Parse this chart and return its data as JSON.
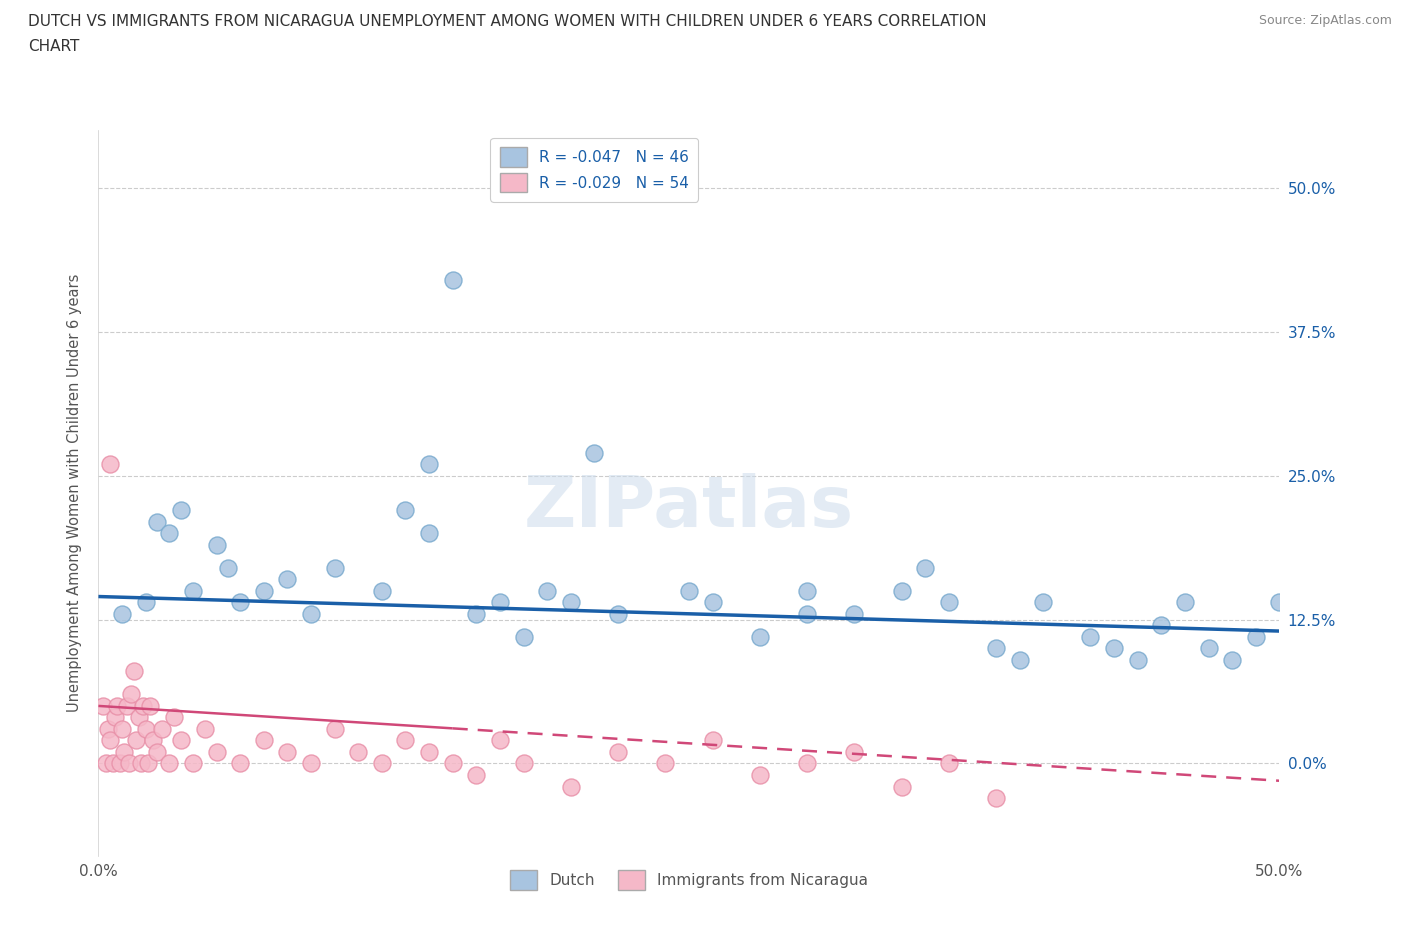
{
  "title_line1": "DUTCH VS IMMIGRANTS FROM NICARAGUA UNEMPLOYMENT AMONG WOMEN WITH CHILDREN UNDER 6 YEARS CORRELATION",
  "title_line2": "CHART",
  "source": "Source: ZipAtlas.com",
  "ylabel": "Unemployment Among Women with Children Under 6 years",
  "ytick_values": [
    0,
    12.5,
    25.0,
    37.5,
    50.0
  ],
  "ytick_labels": [
    "0.0%",
    "12.5%",
    "25.0%",
    "37.5%",
    "50.0%"
  ],
  "xtick_values": [
    0,
    50
  ],
  "xtick_labels": [
    "0.0%",
    "50.0%"
  ],
  "xlim": [
    0,
    50
  ],
  "ylim": [
    -8,
    55
  ],
  "dutch_R": -0.047,
  "dutch_N": 46,
  "nicaragua_R": -0.029,
  "nicaragua_N": 54,
  "dutch_color": "#a8c4e0",
  "dutch_edge_color": "#7aaace",
  "dutch_line_color": "#1a5fa8",
  "nicaragua_color": "#f5b8c8",
  "nicaragua_edge_color": "#e890a8",
  "nicaragua_line_color": "#d04878",
  "watermark": "ZIPatlas",
  "background_color": "#ffffff",
  "grid_color": "#cccccc",
  "right_label_color": "#1a5fa8",
  "title_color": "#333333",
  "source_color": "#888888",
  "legend_text_color": "#1a5fa8",
  "dutch_x": [
    1.0,
    2.0,
    2.5,
    3.0,
    3.5,
    4.0,
    5.0,
    5.5,
    6.0,
    7.0,
    8.0,
    9.0,
    10.0,
    12.0,
    13.0,
    14.0,
    15.0,
    16.0,
    17.0,
    18.0,
    19.0,
    20.0,
    21.0,
    22.0,
    25.0,
    26.0,
    28.0,
    30.0,
    32.0,
    34.0,
    35.0,
    36.0,
    38.0,
    39.0,
    40.0,
    42.0,
    43.0,
    44.0,
    45.0,
    46.0,
    47.0,
    48.0,
    49.0,
    50.0,
    14.0,
    30.0
  ],
  "dutch_y": [
    13.0,
    14.0,
    21.0,
    20.0,
    22.0,
    15.0,
    19.0,
    17.0,
    14.0,
    15.0,
    16.0,
    13.0,
    17.0,
    15.0,
    22.0,
    20.0,
    42.0,
    13.0,
    14.0,
    11.0,
    15.0,
    14.0,
    27.0,
    13.0,
    15.0,
    14.0,
    11.0,
    15.0,
    13.0,
    15.0,
    17.0,
    14.0,
    10.0,
    9.0,
    14.0,
    11.0,
    10.0,
    9.0,
    12.0,
    14.0,
    10.0,
    9.0,
    11.0,
    14.0,
    26.0,
    13.0
  ],
  "nicaragua_x": [
    0.2,
    0.3,
    0.4,
    0.5,
    0.5,
    0.6,
    0.7,
    0.8,
    0.9,
    1.0,
    1.1,
    1.2,
    1.3,
    1.4,
    1.5,
    1.6,
    1.7,
    1.8,
    1.9,
    2.0,
    2.1,
    2.2,
    2.3,
    2.5,
    2.7,
    3.0,
    3.2,
    3.5,
    4.0,
    4.5,
    5.0,
    6.0,
    7.0,
    8.0,
    9.0,
    10.0,
    11.0,
    12.0,
    13.0,
    14.0,
    15.0,
    16.0,
    17.0,
    18.0,
    20.0,
    22.0,
    24.0,
    26.0,
    28.0,
    30.0,
    32.0,
    34.0,
    36.0,
    38.0
  ],
  "nicaragua_y": [
    5.0,
    0.0,
    3.0,
    26.0,
    2.0,
    0.0,
    4.0,
    5.0,
    0.0,
    3.0,
    1.0,
    5.0,
    0.0,
    6.0,
    8.0,
    2.0,
    4.0,
    0.0,
    5.0,
    3.0,
    0.0,
    5.0,
    2.0,
    1.0,
    3.0,
    0.0,
    4.0,
    2.0,
    0.0,
    3.0,
    1.0,
    0.0,
    2.0,
    1.0,
    0.0,
    3.0,
    1.0,
    0.0,
    2.0,
    1.0,
    0.0,
    -1.0,
    2.0,
    0.0,
    -2.0,
    1.0,
    0.0,
    2.0,
    -1.0,
    0.0,
    1.0,
    -2.0,
    0.0,
    -3.0
  ],
  "dutch_line_y0": 14.5,
  "dutch_line_y1": 11.5,
  "nicaragua_line_y0": 5.0,
  "nicaragua_line_y1": -1.5,
  "nicaragua_solid_x_end": 15.0
}
